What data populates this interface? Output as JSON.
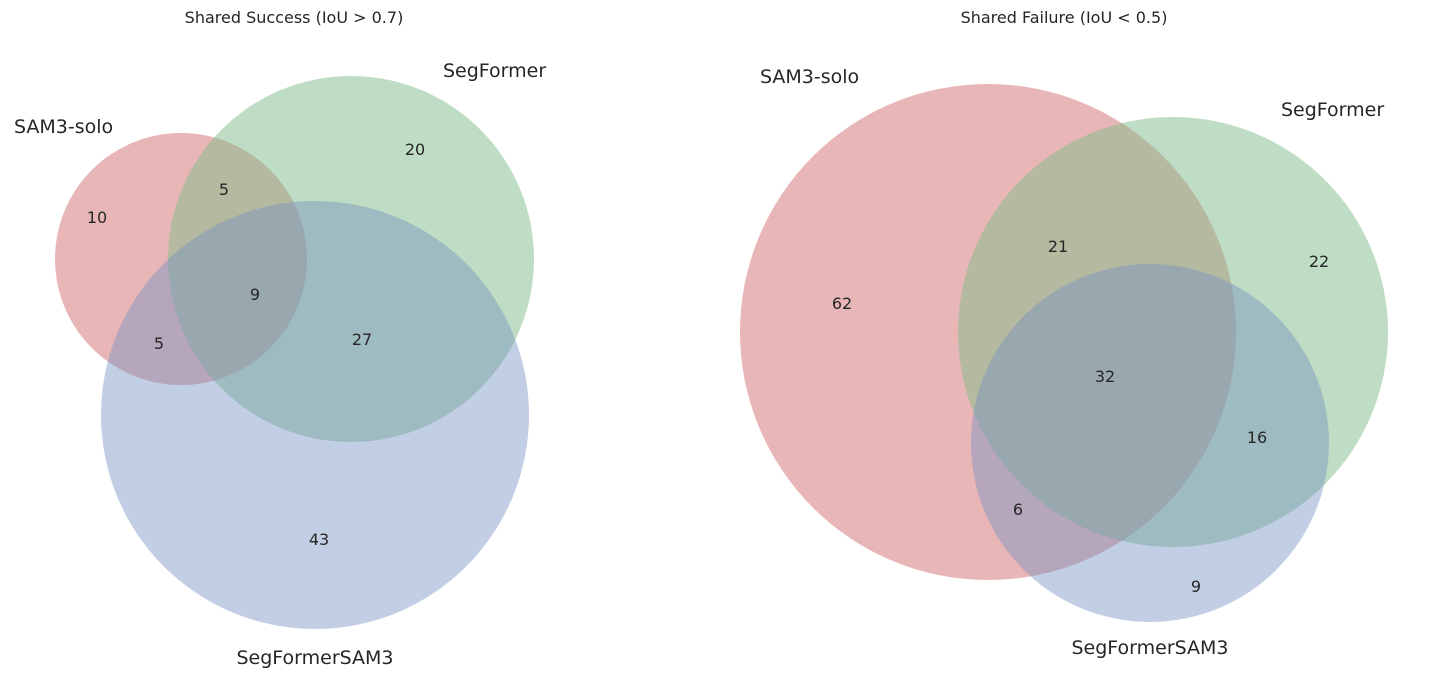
{
  "colors": {
    "set_a": "#d88585",
    "set_b": "#7fbb8a",
    "set_c": "#7892c0",
    "text": "#262626",
    "background": "#ffffff"
  },
  "chart_data": [
    {
      "type": "venn3",
      "title": "Shared Success (IoU > 0.7)",
      "sets": [
        "SAM3-solo",
        "SegFormer",
        "SegFormerSAM3"
      ],
      "regions": {
        "SAM3-solo_only": 10,
        "SegFormer_only": 20,
        "SegFormerSAM3_only": 43,
        "SAM3-solo_SegFormer_only": 5,
        "SAM3-solo_SegFormerSAM3_only": 5,
        "SegFormer_SegFormerSAM3_only": 27,
        "all_three": 9
      }
    },
    {
      "type": "venn3",
      "title": "Shared Failure (IoU < 0.5)",
      "sets": [
        "SAM3-solo",
        "SegFormer",
        "SegFormerSAM3"
      ],
      "regions": {
        "SAM3-solo_only": 62,
        "SegFormer_only": 22,
        "SegFormerSAM3_only": 9,
        "SAM3-solo_SegFormer_only": 21,
        "SAM3-solo_SegFormerSAM3_only": 6,
        "SegFormer_SegFormerSAM3_only": 16,
        "all_three": 32
      }
    }
  ]
}
